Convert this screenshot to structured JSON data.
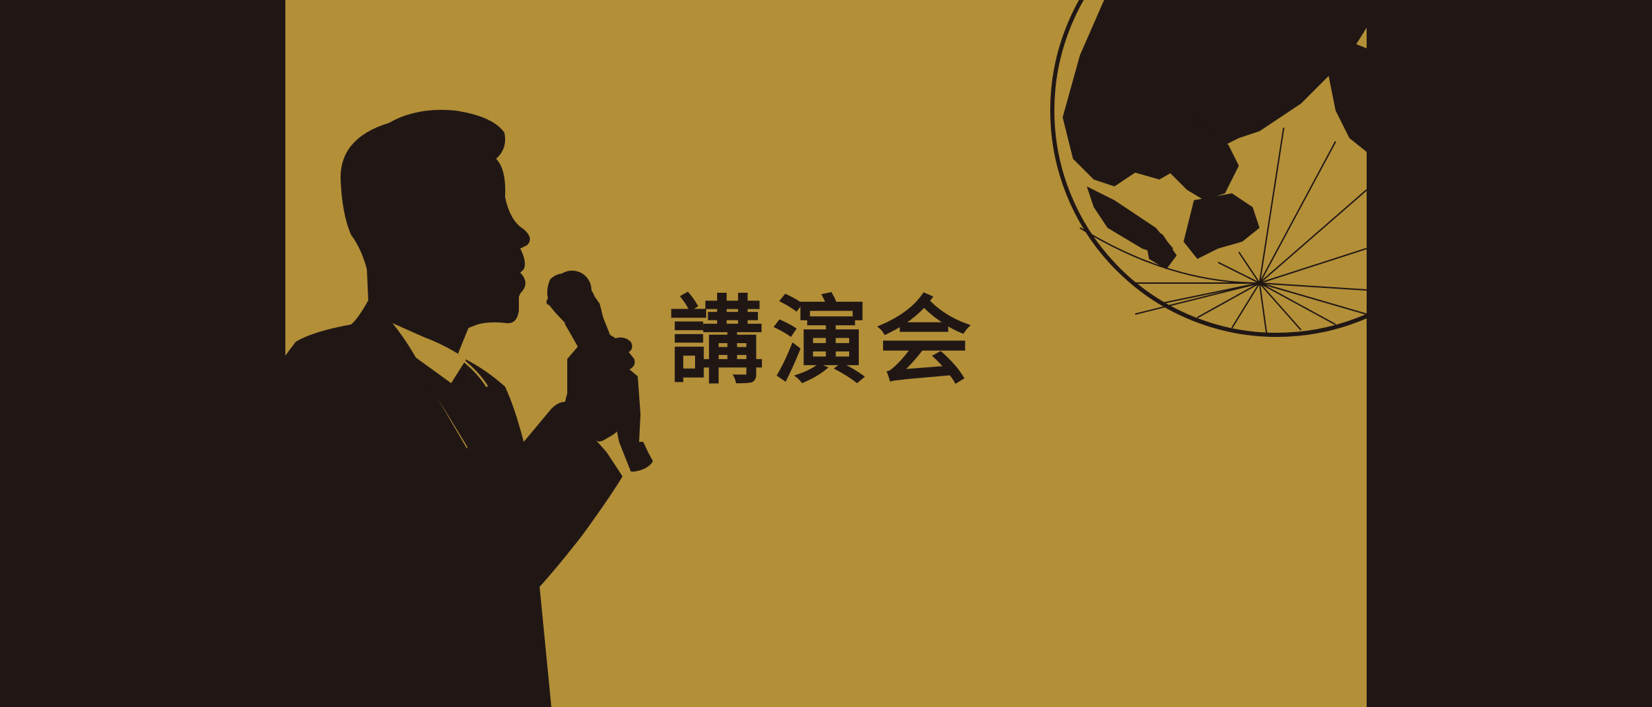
{
  "title": "講演会",
  "colors": {
    "background": "#201715",
    "poster": "#b38f38",
    "ink": "#201715"
  },
  "graphics": {
    "speaker": "speaker-silhouette",
    "microphone": "microphone-icon",
    "globe": "globe-icon"
  }
}
